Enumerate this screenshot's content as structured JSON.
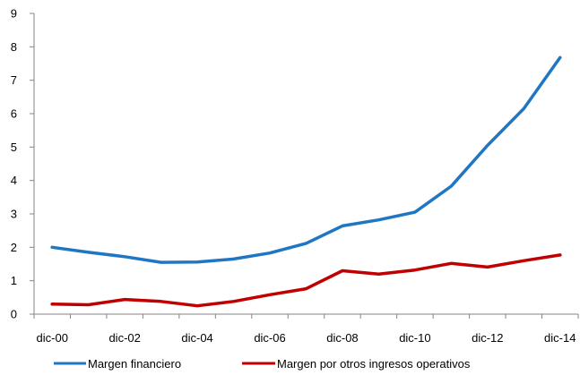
{
  "chart_data": {
    "type": "line",
    "title": "",
    "xlabel": "",
    "ylabel": "",
    "ylim": [
      0,
      9
    ],
    "yticks": [
      "0",
      "1",
      "2",
      "3",
      "4",
      "5",
      "6",
      "7",
      "8",
      "9"
    ],
    "xtick_labels": [
      "dic-00",
      "dic-02",
      "dic-04",
      "dic-06",
      "dic-08",
      "dic-10",
      "dic-12",
      "dic-14"
    ],
    "x": [
      "dic-00",
      "dic-01",
      "dic-02",
      "dic-03",
      "dic-04",
      "dic-05",
      "dic-06",
      "dic-07",
      "dic-08",
      "dic-09",
      "dic-10",
      "dic-11",
      "dic-12",
      "dic-13",
      "dic-14"
    ],
    "grid": false,
    "legend_position": "bottom",
    "series": [
      {
        "name": "Margen financiero",
        "color": "#1f77c4",
        "values": [
          2.0,
          1.85,
          1.72,
          1.55,
          1.56,
          1.65,
          1.83,
          2.12,
          2.64,
          2.82,
          3.05,
          3.83,
          5.05,
          6.15,
          7.68
        ]
      },
      {
        "name": "Margen por otros ingresos operativos",
        "color": "#c00000",
        "values": [
          0.3,
          0.28,
          0.44,
          0.38,
          0.25,
          0.38,
          0.58,
          0.76,
          1.3,
          1.2,
          1.32,
          1.52,
          1.41,
          1.6,
          1.77
        ]
      }
    ]
  }
}
